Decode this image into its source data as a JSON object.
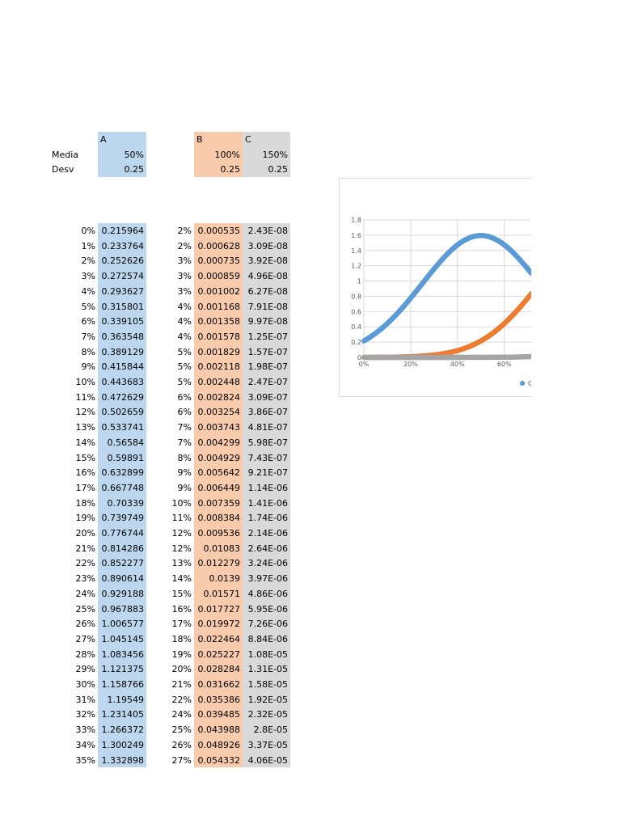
{
  "header": {
    "col_a": "A",
    "col_b": "B",
    "col_c": "C",
    "media_label": "Media",
    "desv_label": "Desv",
    "media": [
      "50%",
      "100%",
      "150%"
    ],
    "desv": [
      "0.25",
      "0.25",
      "0.25"
    ]
  },
  "table": {
    "rows": [
      [
        "0%",
        "0.215964",
        "2%",
        "0.000535",
        "2.43E-08"
      ],
      [
        "1%",
        "0.233764",
        "2%",
        "0.000628",
        "3.09E-08"
      ],
      [
        "2%",
        "0.252626",
        "3%",
        "0.000735",
        "3.92E-08"
      ],
      [
        "3%",
        "0.272574",
        "3%",
        "0.000859",
        "4.96E-08"
      ],
      [
        "4%",
        "0.293627",
        "3%",
        "0.001002",
        "6.27E-08"
      ],
      [
        "5%",
        "0.315801",
        "4%",
        "0.001168",
        "7.91E-08"
      ],
      [
        "6%",
        "0.339105",
        "4%",
        "0.001358",
        "9.97E-08"
      ],
      [
        "7%",
        "0.363548",
        "4%",
        "0.001578",
        "1.25E-07"
      ],
      [
        "8%",
        "0.389129",
        "5%",
        "0.001829",
        "1.57E-07"
      ],
      [
        "9%",
        "0.415844",
        "5%",
        "0.002118",
        "1.98E-07"
      ],
      [
        "10%",
        "0.443683",
        "5%",
        "0.002448",
        "2.47E-07"
      ],
      [
        "11%",
        "0.472629",
        "6%",
        "0.002824",
        "3.09E-07"
      ],
      [
        "12%",
        "0.502659",
        "6%",
        "0.003254",
        "3.86E-07"
      ],
      [
        "13%",
        "0.533741",
        "7%",
        "0.003743",
        "4.81E-07"
      ],
      [
        "14%",
        "0.56584",
        "7%",
        "0.004299",
        "5.98E-07"
      ],
      [
        "15%",
        "0.59891",
        "8%",
        "0.004929",
        "7.43E-07"
      ],
      [
        "16%",
        "0.632899",
        "9%",
        "0.005642",
        "9.21E-07"
      ],
      [
        "17%",
        "0.667748",
        "9%",
        "0.006449",
        "1.14E-06"
      ],
      [
        "18%",
        "0.70339",
        "10%",
        "0.007359",
        "1.41E-06"
      ],
      [
        "19%",
        "0.739749",
        "11%",
        "0.008384",
        "1.74E-06"
      ],
      [
        "20%",
        "0.776744",
        "12%",
        "0.009536",
        "2.14E-06"
      ],
      [
        "21%",
        "0.814286",
        "12%",
        "0.01083",
        "2.64E-06"
      ],
      [
        "22%",
        "0.852277",
        "13%",
        "0.012279",
        "3.24E-06"
      ],
      [
        "23%",
        "0.890614",
        "14%",
        "0.0139",
        "3.97E-06"
      ],
      [
        "24%",
        "0.929188",
        "15%",
        "0.01571",
        "4.86E-06"
      ],
      [
        "25%",
        "0.967883",
        "16%",
        "0.017727",
        "5.95E-06"
      ],
      [
        "26%",
        "1.006577",
        "17%",
        "0.019972",
        "7.26E-06"
      ],
      [
        "27%",
        "1.045145",
        "18%",
        "0.022464",
        "8.84E-06"
      ],
      [
        "28%",
        "1.083456",
        "19%",
        "0.025227",
        "1.08E-05"
      ],
      [
        "29%",
        "1.121375",
        "20%",
        "0.028284",
        "1.31E-05"
      ],
      [
        "30%",
        "1.158766",
        "21%",
        "0.031662",
        "1.58E-05"
      ],
      [
        "31%",
        "1.19549",
        "22%",
        "0.035386",
        "1.92E-05"
      ],
      [
        "32%",
        "1.231405",
        "24%",
        "0.039485",
        "2.32E-05"
      ],
      [
        "33%",
        "1.266372",
        "25%",
        "0.043988",
        "2.8E-05"
      ],
      [
        "34%",
        "1.300249",
        "26%",
        "0.048926",
        "3.37E-05"
      ],
      [
        "35%",
        "1.332898",
        "27%",
        "0.054332",
        "4.06E-05"
      ]
    ]
  },
  "chart_data": {
    "type": "scatter",
    "ylim": [
      0,
      1.8
    ],
    "y_ticks": [
      "0",
      "0.2",
      "0.4",
      "0.6",
      "0.8",
      "1",
      "1.2",
      "1.4",
      "1.6",
      "1.8"
    ],
    "x_ticks": [
      "0%",
      "20%",
      "40%",
      "60%"
    ],
    "legend_visible_text": "C",
    "series": [
      {
        "color": "#5b9bd5",
        "mean": 0.5,
        "sd": 0.25
      },
      {
        "color": "#ed7d31",
        "mean": 1.0,
        "sd": 0.25
      },
      {
        "color": "#a5a5a5",
        "mean": 1.5,
        "sd": 0.25
      }
    ]
  }
}
